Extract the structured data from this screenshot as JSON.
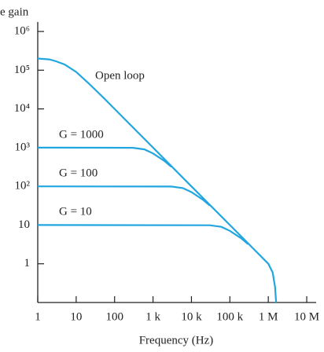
{
  "chart_data": {
    "type": "line",
    "y_label": "e gain",
    "x_label": "Frequency (Hz)",
    "log_x": true,
    "log_y": true,
    "color": "#22a6e0",
    "xlim": [
      1,
      16000000
    ],
    "ylim": [
      0.1,
      1600000
    ],
    "xticks": [
      1,
      10,
      100,
      {
        "value": 1000,
        "label": "1 k"
      },
      {
        "value": 10000,
        "label": "10 k"
      },
      {
        "value": 100000,
        "label": "100 k"
      },
      {
        "value": 1000000,
        "label": "1 M"
      },
      {
        "value": 10000000,
        "label": "10 M"
      }
    ],
    "yticks": [
      1,
      10,
      {
        "value": 100,
        "label": "10²"
      },
      {
        "value": 1000,
        "label": "10³"
      },
      {
        "value": 10000,
        "label": "10⁴"
      },
      {
        "value": 100000,
        "label": "10⁵"
      },
      {
        "value": 1000000,
        "label": "10⁶"
      }
    ],
    "series": [
      {
        "name": "Open loop",
        "x": [
          1,
          2,
          3,
          5,
          10,
          20,
          50,
          100,
          1000,
          10000,
          100000,
          500000,
          1000000,
          1300000,
          1500000,
          1600000
        ],
        "values": [
          200000,
          190000,
          170000,
          140000,
          90000,
          48000,
          20000,
          10000,
          1000,
          100,
          10,
          2,
          1,
          0.6,
          0.25,
          0.1
        ]
      },
      {
        "name": "G = 1000",
        "x": [
          1,
          300,
          600,
          1000,
          2000,
          3000
        ],
        "values": [
          1000,
          990,
          900,
          707,
          450,
          320
        ]
      },
      {
        "name": "G = 100",
        "x": [
          1,
          3000,
          6000,
          10000,
          20000,
          30000
        ],
        "values": [
          100,
          99,
          90,
          71,
          45,
          32
        ]
      },
      {
        "name": "G = 10",
        "x": [
          1,
          30000,
          60000,
          100000,
          200000,
          300000
        ],
        "values": [
          10,
          9.9,
          9,
          7.1,
          4.5,
          3.2
        ]
      }
    ]
  }
}
